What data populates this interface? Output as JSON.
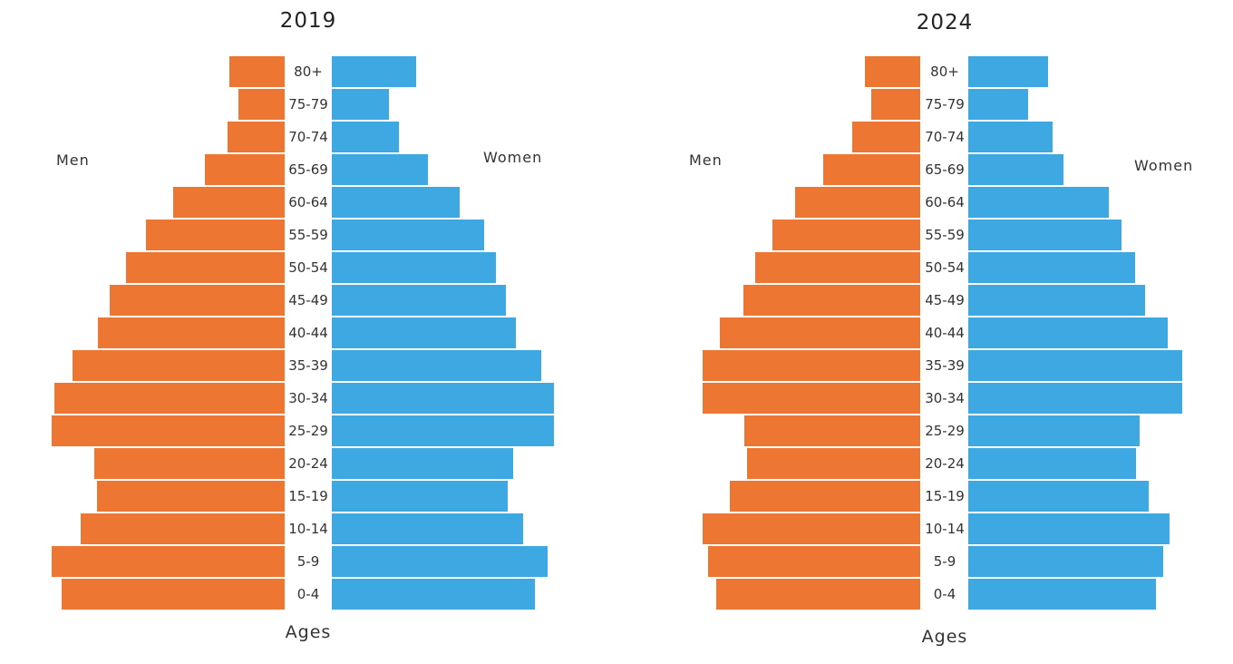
{
  "colors": {
    "men": "#ee7633",
    "women": "#3ea8e3",
    "background": "#ffffff"
  },
  "chart_data": [
    {
      "type": "bar",
      "orientation": "horizontal-pyramid",
      "title": "2019",
      "left_label": "Men",
      "right_label": "Women",
      "xlabel": "Ages",
      "grid": false,
      "categories": [
        "80+",
        "75-79",
        "70-74",
        "65-69",
        "60-64",
        "55-59",
        "50-54",
        "45-49",
        "40-44",
        "35-39",
        "30-34",
        "25-29",
        "20-24",
        "15-19",
        "10-14",
        "5-9",
        "0-4"
      ],
      "series": [
        {
          "name": "Men",
          "values": [
            6.0,
            5.0,
            6.2,
            8.6,
            12.1,
            15.0,
            17.2,
            18.9,
            20.2,
            22.9,
            24.9,
            25.2,
            20.6,
            20.3,
            22.1,
            25.2,
            24.1
          ]
        },
        {
          "name": "Women",
          "values": [
            9.1,
            6.2,
            7.3,
            10.4,
            13.8,
            16.5,
            17.7,
            18.8,
            19.9,
            22.6,
            24.0,
            24.0,
            19.6,
            19.0,
            20.7,
            23.3,
            22.0
          ]
        }
      ]
    },
    {
      "type": "bar",
      "orientation": "horizontal-pyramid",
      "title": "2024",
      "left_label": "Men",
      "right_label": "Women",
      "xlabel": "Ages",
      "grid": false,
      "categories": [
        "80+",
        "75-79",
        "70-74",
        "65-69",
        "60-64",
        "55-59",
        "50-54",
        "45-49",
        "40-44",
        "35-39",
        "30-34",
        "25-29",
        "20-24",
        "15-19",
        "10-14",
        "5-9",
        "0-4"
      ],
      "series": [
        {
          "name": "Men",
          "values": [
            6.0,
            5.3,
            7.4,
            10.5,
            13.5,
            16.0,
            17.8,
            19.1,
            21.7,
            23.5,
            23.5,
            19.0,
            18.7,
            20.6,
            23.5,
            22.9,
            22.1
          ]
        },
        {
          "name": "Women",
          "values": [
            8.6,
            6.5,
            9.1,
            10.3,
            15.2,
            16.6,
            18.0,
            19.1,
            21.6,
            23.1,
            23.1,
            18.5,
            18.1,
            19.5,
            21.8,
            21.1,
            20.3
          ]
        }
      ]
    }
  ]
}
